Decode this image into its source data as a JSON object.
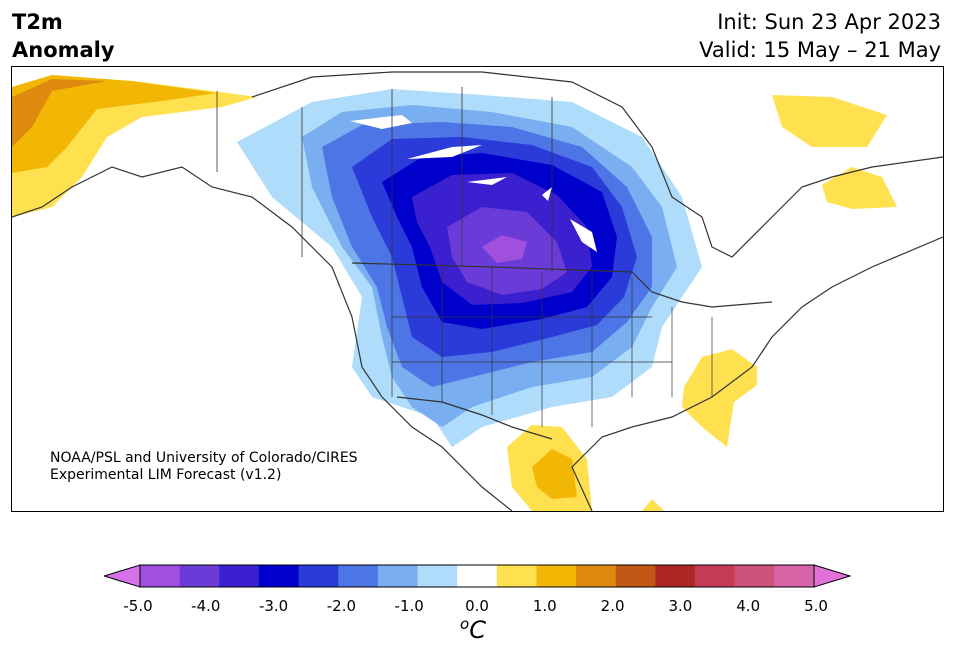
{
  "header": {
    "variable": "T2m",
    "quantity": "Anomaly",
    "init": "Init: Sun 23 Apr 2023",
    "valid": "Valid: 15 May – 21 May"
  },
  "credit": {
    "line1": "NOAA/PSL and University of Colorado/CIRES",
    "line2": "Experimental LIM Forecast (v1.2)"
  },
  "colorbar": {
    "colors": [
      "#d771e8",
      "#a150dd",
      "#6b3bd8",
      "#3a20cf",
      "#0000cc",
      "#2a3bd9",
      "#4e75e5",
      "#79aef0",
      "#aedcfa",
      "#ffffff",
      "#ffe04e",
      "#f2b705",
      "#de8a0f",
      "#c35816",
      "#ae2727",
      "#c43d55",
      "#cf527b",
      "#d864a8",
      "#e372d8"
    ],
    "tick_labels": [
      "-5.0",
      "-4.0",
      "-3.0",
      "-2.0",
      "-1.0",
      "0.0",
      "1.0",
      "2.0",
      "3.0",
      "4.0",
      "5.0"
    ],
    "unit_base": "C",
    "unit_sup": "o"
  },
  "map": {
    "region": "North America",
    "projection": "conic",
    "features": [
      "coastlines",
      "country borders",
      "state/province borders"
    ],
    "shaded_field": "2-m temperature anomaly (°C)"
  }
}
